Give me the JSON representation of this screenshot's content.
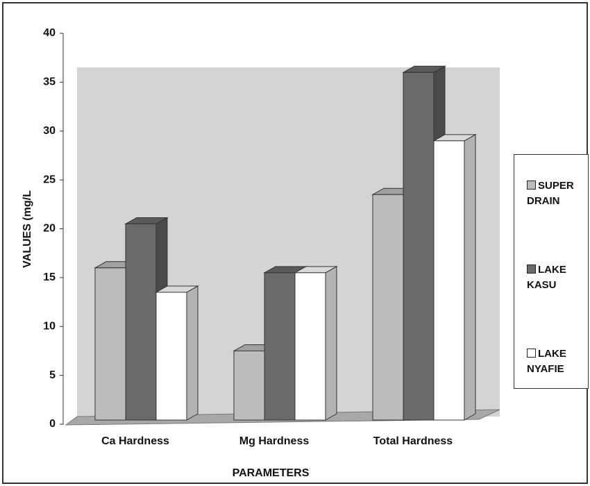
{
  "chart_data": {
    "type": "bar3d",
    "ylabel": "VALUES (mg/L",
    "xlabel": "PARAMETERS",
    "categories": [
      "Ca Hardness",
      "Mg Hardness",
      "Total Hardness"
    ],
    "series": [
      {
        "name": "SUPER DRAIN",
        "color": "#bcbcbc",
        "values": [
          16,
          7.5,
          23.5
        ]
      },
      {
        "name": "LAKE KASU",
        "color": "#6a6a6a",
        "values": [
          20.5,
          15.5,
          36
        ]
      },
      {
        "name": "LAKE NYAFIE",
        "color": "#ffffff",
        "values": [
          13.5,
          15.5,
          29
        ]
      }
    ],
    "ylim": [
      0,
      40
    ],
    "yticks": [
      0,
      5,
      10,
      15,
      20,
      25,
      30,
      35,
      40
    ]
  }
}
